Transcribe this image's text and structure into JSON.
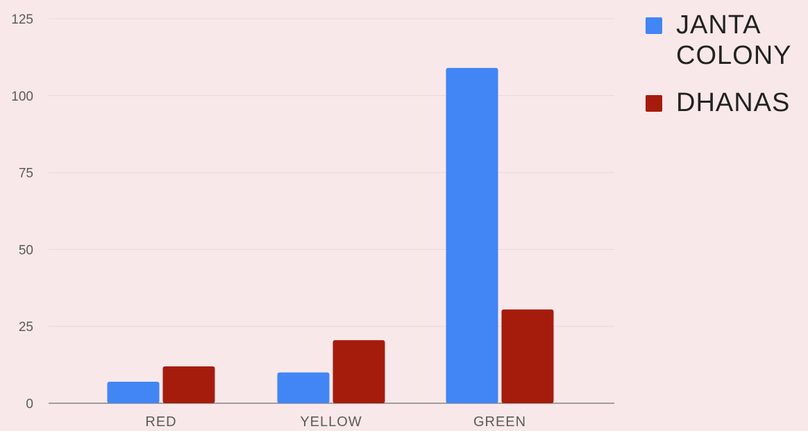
{
  "chart_data": {
    "type": "bar",
    "categories": [
      "RED",
      "YELLOW",
      "GREEN"
    ],
    "series": [
      {
        "name": "JANTA COLONY",
        "color": "#4285f4",
        "values": [
          7,
          10,
          109
        ]
      },
      {
        "name": "DHANAS",
        "color": "#a51c0d",
        "values": [
          12,
          20.5,
          30.5
        ]
      }
    ],
    "yticks": [
      "0",
      "25",
      "50",
      "75",
      "100",
      "125"
    ],
    "ylim": [
      0,
      125
    ],
    "grid": true,
    "legend_position": "right",
    "legend": [
      {
        "lines": [
          "JANTA",
          "COLONY"
        ]
      },
      {
        "lines": [
          "DHANAS"
        ]
      }
    ]
  }
}
